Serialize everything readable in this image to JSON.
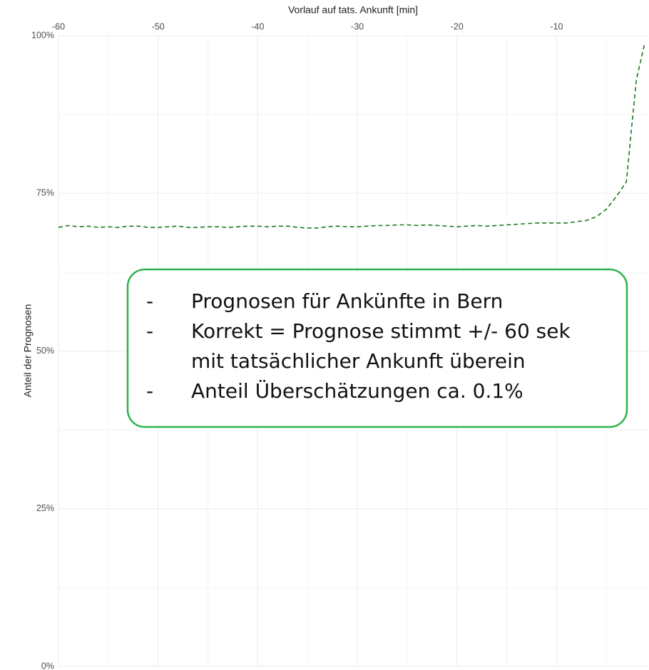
{
  "chart_data": {
    "type": "line",
    "xlabel": "Vorlauf auf tats. Ankunft [min]",
    "ylabel": "Anteil der Prognosen",
    "xlim": [
      -60,
      -0.8
    ],
    "xticks": [
      -60,
      -50,
      -40,
      -30,
      -20,
      -10
    ],
    "xminorticks": [
      -55,
      -45,
      -35,
      -25,
      -15,
      -5
    ],
    "ylim": [
      0,
      100
    ],
    "yticks": [
      {
        "value": 0,
        "label": "0%"
      },
      {
        "value": 25,
        "label": "25%"
      },
      {
        "value": 50,
        "label": "50%"
      },
      {
        "value": 75,
        "label": "75%"
      },
      {
        "value": 100,
        "label": "100%"
      }
    ],
    "yminorticks": [
      12.5,
      37.5,
      62.5,
      87.5
    ],
    "grid": true,
    "x": [
      -60,
      -59,
      -58,
      -57,
      -56,
      -55,
      -54,
      -53,
      -52,
      -51,
      -50,
      -49,
      -48,
      -47,
      -46,
      -45,
      -44,
      -43,
      -42,
      -41,
      -40,
      -39,
      -38,
      -37,
      -36,
      -35,
      -34,
      -33,
      -32,
      -31,
      -30,
      -29,
      -28,
      -27,
      -26,
      -25,
      -24,
      -23,
      -22,
      -21,
      -20,
      -19,
      -18,
      -17,
      -16,
      -15,
      -14,
      -13,
      -12,
      -11,
      -10,
      -9,
      -8,
      -7,
      -6,
      -5,
      -4,
      -3,
      -2.5,
      -2,
      -1.2
    ],
    "series": [
      {
        "color": "#1f7a1f",
        "dashed": true,
        "values": [
          69.6,
          69.9,
          69.7,
          69.8,
          69.6,
          69.7,
          69.6,
          69.8,
          69.8,
          69.6,
          69.6,
          69.7,
          69.8,
          69.6,
          69.6,
          69.7,
          69.7,
          69.6,
          69.7,
          69.8,
          69.8,
          69.7,
          69.8,
          69.8,
          69.6,
          69.5,
          69.5,
          69.7,
          69.8,
          69.7,
          69.7,
          69.8,
          69.9,
          69.9,
          70.0,
          70.0,
          69.9,
          70.0,
          69.9,
          69.8,
          69.7,
          69.8,
          69.9,
          69.8,
          69.9,
          70.0,
          70.1,
          70.2,
          70.3,
          70.3,
          70.3,
          70.3,
          70.5,
          70.7,
          71.3,
          72.5,
          74.5,
          76.8,
          85,
          93,
          98.5
        ]
      }
    ],
    "annotation": {
      "border_color": "#2db34a",
      "items": [
        {
          "marker": "-",
          "text": "Prognosen für Ankünfte in Bern"
        },
        {
          "marker": "-",
          "text": "Korrekt = Prognose stimmt +/- 60 sek"
        },
        {
          "text": "mit tatsächlicher Ankunft überein"
        },
        {
          "marker": "-",
          "text": "Anteil Überschätzungen ca. 0.1%"
        }
      ]
    }
  }
}
